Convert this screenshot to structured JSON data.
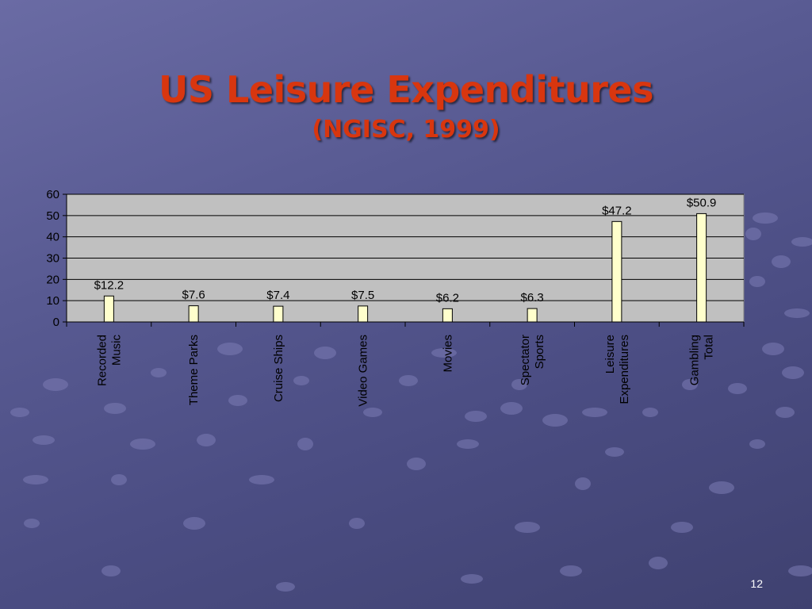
{
  "slide": {
    "title": "US Leisure Expenditures",
    "subtitle": "(NGISC, 1999)",
    "page_number": "12"
  },
  "colors": {
    "title": "#d8360f",
    "bar_fill": "#ffffcc",
    "plot_background": "#c0c0c0",
    "background": "#585a92"
  },
  "chart_data": {
    "type": "bar",
    "categories": [
      [
        "Recorded",
        "Music"
      ],
      [
        "Theme Parks"
      ],
      [
        "Cruise Ships"
      ],
      [
        "Video Games"
      ],
      [
        "Movies"
      ],
      [
        "Spectator",
        "Sports"
      ],
      [
        "Leisure",
        "Expenditures"
      ],
      [
        "Gambling",
        "Total"
      ]
    ],
    "values": [
      12.2,
      7.6,
      7.4,
      7.5,
      6.2,
      6.3,
      47.2,
      50.9
    ],
    "data_labels": [
      "$12.2",
      "$7.6",
      "$7.4",
      "$7.5",
      "$6.2",
      "$6.3",
      "$47.2",
      "$50.9"
    ],
    "ylim": [
      0,
      60
    ],
    "yticks": [
      0,
      10,
      20,
      30,
      40,
      50,
      60
    ],
    "grid": true,
    "legend": "none"
  }
}
